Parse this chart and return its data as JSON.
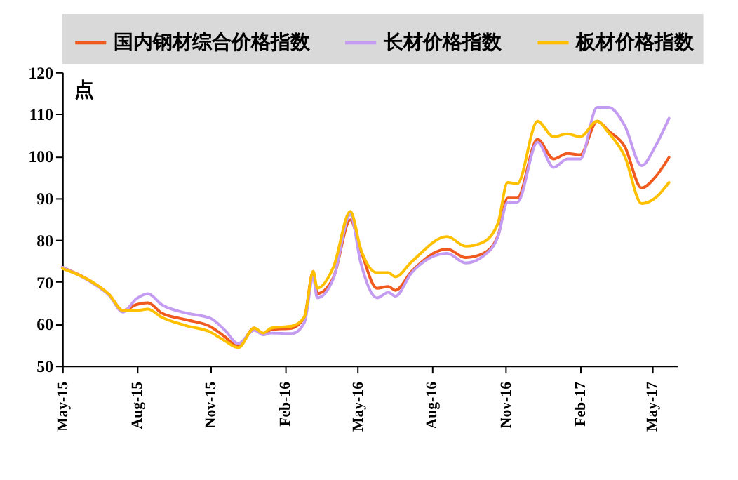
{
  "chart_data": {
    "type": "line",
    "ylabel": "点",
    "legend": "top",
    "x": [
      "2015-05-01",
      "2015-06-05",
      "2015-06-28",
      "2015-07-15",
      "2015-08-01",
      "2015-08-15",
      "2015-09-01",
      "2015-10-01",
      "2015-11-01",
      "2015-11-18",
      "2015-12-05",
      "2015-12-25",
      "2016-01-05",
      "2016-01-15",
      "2016-02-10",
      "2016-02-25",
      "2016-03-07",
      "2016-03-12",
      "2016-04-01",
      "2016-04-22",
      "2016-05-05",
      "2016-05-25",
      "2016-06-08",
      "2016-06-17",
      "2016-07-07",
      "2016-08-20",
      "2016-09-12",
      "2016-10-04",
      "2016-10-22",
      "2016-11-03",
      "2016-11-15",
      "2016-12-10",
      "2016-12-30",
      "2017-01-16",
      "2017-02-01",
      "2017-02-22",
      "2017-03-08",
      "2017-03-28",
      "2017-04-18",
      "2017-05-05",
      "2017-05-22"
    ],
    "series": [
      {
        "name": "国内钢材综合价格指数",
        "color": "#f05a1e",
        "values": [
          73.5,
          70.2,
          67,
          63.2,
          64.6,
          65,
          62.6,
          61,
          59.3,
          57,
          54.6,
          59,
          57.6,
          58.6,
          59,
          61.6,
          72.5,
          67.2,
          71,
          84.8,
          77.5,
          68.5,
          68.9,
          68,
          72.5,
          77.8,
          75.8,
          76.8,
          81,
          90,
          90,
          104,
          99.3,
          100.6,
          100.3,
          108.3,
          106,
          102.3,
          92.4,
          95,
          99.7
        ]
      },
      {
        "name": "长材价格指数",
        "color": "#c39bf0",
        "values": [
          73.5,
          70,
          66.8,
          62.8,
          66,
          67.2,
          64.6,
          62.6,
          61.3,
          58.6,
          55.3,
          58.5,
          57.4,
          57.8,
          57.7,
          60.3,
          71,
          66.2,
          70.8,
          86,
          74.5,
          66.2,
          67.5,
          66.6,
          72.2,
          76.8,
          74.5,
          76.2,
          80.8,
          89,
          89,
          103.3,
          97.3,
          99.3,
          99.3,
          111.6,
          111.6,
          107.3,
          97.7,
          102.3,
          109
        ]
      },
      {
        "name": "板材价格指数",
        "color": "#ffc000",
        "values": [
          73.2,
          70.2,
          67,
          63.2,
          63.2,
          63.5,
          61.6,
          59.6,
          58,
          56,
          54.3,
          59,
          57.8,
          59,
          59.5,
          61.6,
          72.5,
          68.5,
          73.5,
          86.8,
          77.8,
          72.2,
          72.2,
          71.2,
          74.8,
          80.8,
          78.5,
          79.5,
          84,
          93.7,
          93.4,
          108.3,
          104.6,
          105.3,
          104.6,
          108.3,
          105.6,
          100,
          88.7,
          90,
          93.7
        ]
      }
    ],
    "xlim": [
      "2015-05-01",
      "2017-06-01"
    ],
    "xticks": [
      {
        "value": "2015-05-01",
        "label": "May-15"
      },
      {
        "value": "2015-08-01",
        "label": "Aug-15"
      },
      {
        "value": "2015-11-01",
        "label": "Nov-15"
      },
      {
        "value": "2016-02-01",
        "label": "Feb-16"
      },
      {
        "value": "2016-05-01",
        "label": "May-16"
      },
      {
        "value": "2016-08-01",
        "label": "Aug-16"
      },
      {
        "value": "2016-11-01",
        "label": "Nov-16"
      },
      {
        "value": "2017-02-01",
        "label": "Feb-17"
      },
      {
        "value": "2017-05-01",
        "label": "May-17"
      }
    ],
    "ylim": [
      50,
      120
    ],
    "yticks": [
      50,
      60,
      70,
      80,
      90,
      100,
      110,
      120
    ],
    "grid": false,
    "marker": "none",
    "line_style": "solid"
  }
}
